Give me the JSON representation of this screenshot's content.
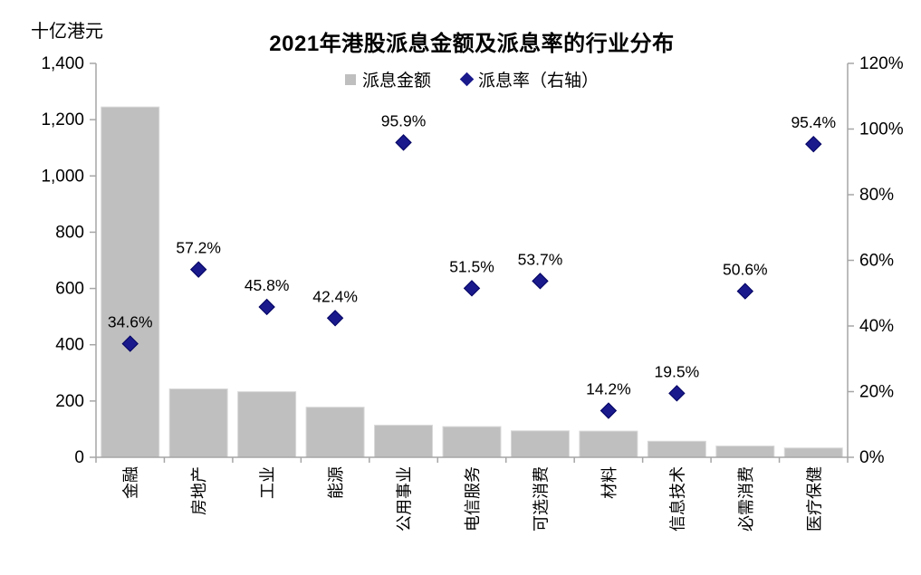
{
  "chart_data": {
    "type": "bar",
    "combo": "bar + scatter (dual axis)",
    "title": "2021年港股派息金额及派息率的行业分布",
    "unit_label": "十亿港元",
    "categories": [
      "金融",
      "房地产",
      "工业",
      "能源",
      "公用事业",
      "电信服务",
      "可选消费",
      "材料",
      "信息技术",
      "必需消费",
      "医疗保健"
    ],
    "series": [
      {
        "name": "派息金额",
        "type": "bar",
        "axis": "left",
        "color": "#bfbfbf",
        "border_color": "#d9d9d9",
        "values": [
          1245,
          243,
          233,
          178,
          114,
          109,
          94,
          93,
          57,
          40,
          33
        ]
      },
      {
        "name": "派息率（右轴）",
        "type": "scatter",
        "marker": "diamond",
        "axis": "right",
        "color": "#1a1a8c",
        "border_color": "#000060",
        "values": [
          34.6,
          57.2,
          45.8,
          42.4,
          95.9,
          51.5,
          53.7,
          14.2,
          19.5,
          50.6,
          95.4
        ],
        "labels": [
          "34.6%",
          "57.2%",
          "45.8%",
          "42.4%",
          "95.9%",
          "51.5%",
          "53.7%",
          "14.2%",
          "19.5%",
          "50.6%",
          "95.4%"
        ]
      }
    ],
    "left_axis": {
      "min": 0,
      "max": 1400,
      "step": 200,
      "tick_labels": [
        "0",
        "200",
        "400",
        "600",
        "800",
        "1,000",
        "1,200",
        "1,400"
      ]
    },
    "right_axis": {
      "min": 0,
      "max": 120,
      "step": 20,
      "tick_labels": [
        "0%",
        "20%",
        "40%",
        "60%",
        "80%",
        "100%",
        "120%"
      ]
    },
    "legend_position": "top-center",
    "grid": false,
    "axis_color": "#a6a6a6",
    "text_color": "#000000"
  }
}
